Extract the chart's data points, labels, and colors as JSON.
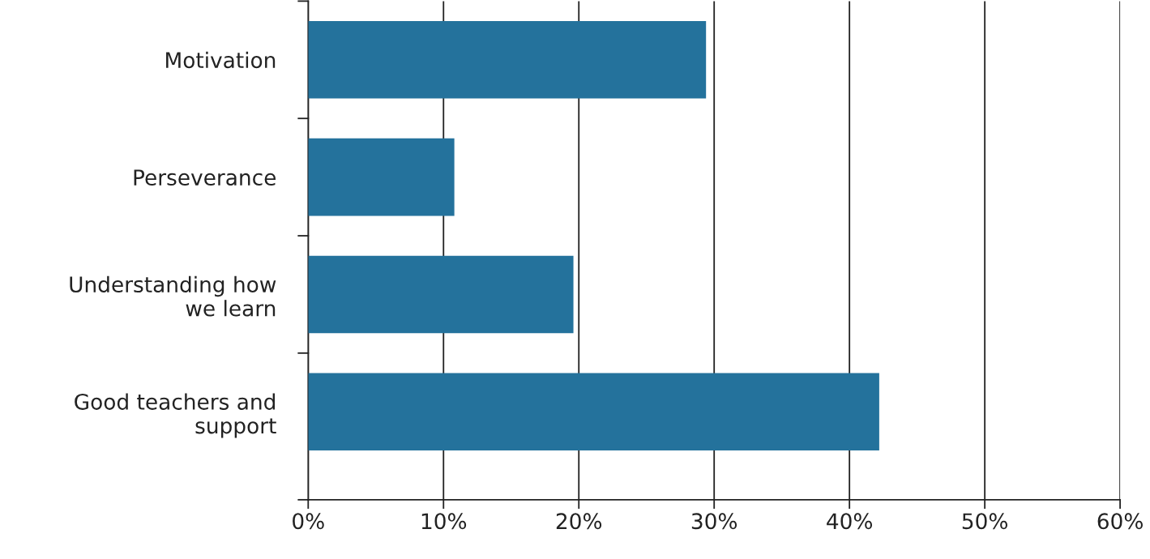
{
  "chart_data": {
    "type": "bar",
    "orientation": "horizontal",
    "categories": [
      "Motivation",
      "Perseverance",
      "Understanding how\nwe learn",
      "Good teachers and\nsupport"
    ],
    "values": [
      29.4,
      10.8,
      19.6,
      42.2
    ],
    "color": "#24729c",
    "xlim": [
      0,
      60
    ],
    "xticks": [
      {
        "value": 0,
        "label": "0%"
      },
      {
        "value": 10,
        "label": "10%"
      },
      {
        "value": 20,
        "label": "20%"
      },
      {
        "value": 30,
        "label": "30%"
      },
      {
        "value": 40,
        "label": "40%"
      },
      {
        "value": 50,
        "label": "50%"
      },
      {
        "value": 60,
        "label": "60%"
      }
    ],
    "grid": "x",
    "legend": false
  }
}
